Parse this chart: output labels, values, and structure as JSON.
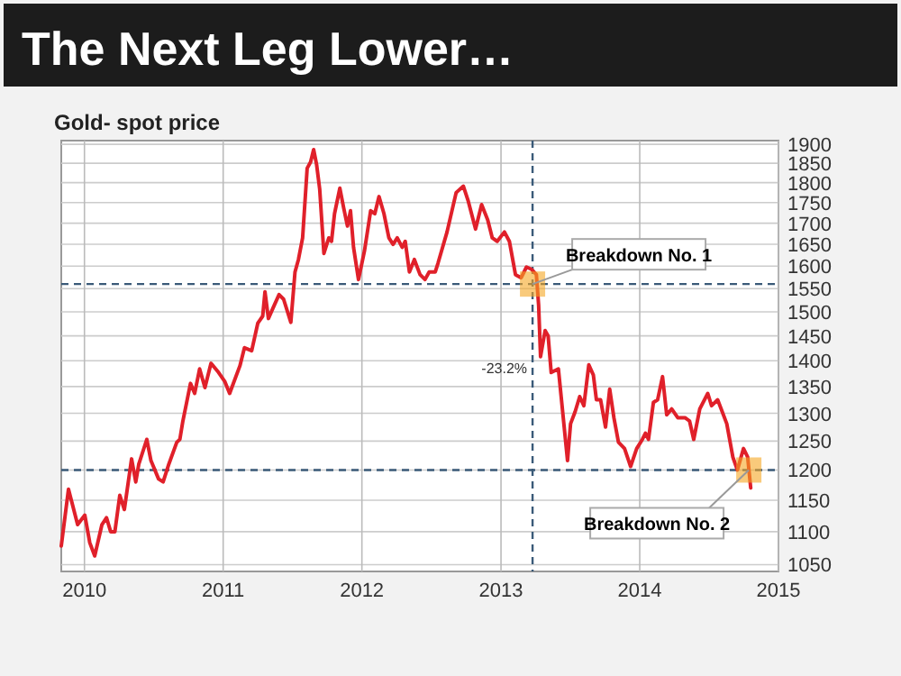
{
  "chart_data": {
    "type": "line",
    "title": "The Next Leg Lower…",
    "subtitle": "Gold- spot price",
    "x": [
      "2009-11-01",
      "2009-11-20",
      "2009-12-14",
      "2010-01-02",
      "2010-01-15",
      "2010-01-28",
      "2010-02-16",
      "2010-02-28",
      "2010-03-11",
      "2010-03-22",
      "2010-04-04",
      "2010-04-16",
      "2010-05-05",
      "2010-05-16",
      "2010-05-24",
      "2010-06-14",
      "2010-06-25",
      "2010-07-15",
      "2010-07-27",
      "2010-08-11",
      "2010-09-01",
      "2010-09-09",
      "2010-09-17",
      "2010-10-07",
      "2010-10-18",
      "2010-10-31",
      "2010-11-14",
      "2010-11-30",
      "2010-12-20",
      "2011-01-05",
      "2011-01-18",
      "2011-02-14",
      "2011-02-26",
      "2011-03-17",
      "2011-04-02",
      "2011-04-15",
      "2011-04-21",
      "2011-04-30",
      "2011-05-12",
      "2011-05-28",
      "2011-06-09",
      "2011-06-28",
      "2011-07-09",
      "2011-07-18",
      "2011-07-29",
      "2011-08-10",
      "2011-08-19",
      "2011-08-27",
      "2011-09-04",
      "2011-09-12",
      "2011-09-23",
      "2011-10-06",
      "2011-10-13",
      "2011-10-21",
      "2011-11-04",
      "2011-11-14",
      "2011-11-24",
      "2011-12-02",
      "2011-12-10",
      "2011-12-23",
      "2012-01-08",
      "2012-01-24",
      "2012-02-04",
      "2012-02-15",
      "2012-02-28",
      "2012-03-12",
      "2012-03-23",
      "2012-04-03",
      "2012-04-16",
      "2012-04-24",
      "2012-05-05",
      "2012-05-18",
      "2012-06-02",
      "2012-06-15",
      "2012-06-26",
      "2012-07-12",
      "2012-07-19",
      "2012-08-12",
      "2012-09-05",
      "2012-09-24",
      "2012-10-07",
      "2012-10-26",
      "2012-11-11",
      "2012-11-27",
      "2012-12-09",
      "2012-12-22",
      "2013-01-10",
      "2013-01-23",
      "2013-02-08",
      "2013-02-23",
      "2013-03-09",
      "2013-03-22",
      "2013-04-04",
      "2013-04-10",
      "2013-04-15",
      "2013-04-27",
      "2013-05-05",
      "2013-05-13",
      "2013-06-01",
      "2013-06-25",
      "2013-07-03",
      "2013-07-15",
      "2013-07-27",
      "2013-08-07",
      "2013-08-20",
      "2013-09-01",
      "2013-09-09",
      "2013-09-20",
      "2013-10-03",
      "2013-10-14",
      "2013-10-25",
      "2013-11-06",
      "2013-11-22",
      "2013-12-08",
      "2013-12-24",
      "2014-01-08",
      "2014-01-16",
      "2014-01-24",
      "2014-02-06",
      "2014-02-17",
      "2014-03-02",
      "2014-03-13",
      "2014-03-26",
      "2014-04-11",
      "2014-04-30",
      "2014-05-12",
      "2014-05-23",
      "2014-06-08",
      "2014-06-29",
      "2014-07-09",
      "2014-07-25",
      "2014-08-06",
      "2014-08-18",
      "2014-09-03",
      "2014-09-15",
      "2014-10-01",
      "2014-10-12",
      "2014-10-20"
    ],
    "series": [
      {
        "color": "#e0202a",
        "values": [
          1078,
          1168,
          1111,
          1126,
          1083,
          1063,
          1111,
          1122,
          1100,
          1100,
          1158,
          1135,
          1219,
          1180,
          1210,
          1253,
          1216,
          1185,
          1180,
          1210,
          1248,
          1253,
          1286,
          1356,
          1337,
          1384,
          1348,
          1395,
          1377,
          1360,
          1337,
          1390,
          1426,
          1420,
          1476,
          1491,
          1543,
          1486,
          1508,
          1537,
          1527,
          1478,
          1587,
          1615,
          1665,
          1837,
          1853,
          1886,
          1845,
          1783,
          1629,
          1665,
          1657,
          1723,
          1786,
          1737,
          1693,
          1730,
          1643,
          1570,
          1636,
          1730,
          1723,
          1765,
          1723,
          1665,
          1650,
          1665,
          1643,
          1657,
          1587,
          1615,
          1581,
          1570,
          1587,
          1587,
          1606,
          1679,
          1775,
          1791,
          1753,
          1686,
          1745,
          1708,
          1665,
          1657,
          1679,
          1657,
          1581,
          1574,
          1598,
          1593,
          1581,
          1514,
          1408,
          1461,
          1450,
          1377,
          1384,
          1216,
          1281,
          1303,
          1331,
          1314,
          1392,
          1372,
          1325,
          1325,
          1275,
          1345,
          1292,
          1248,
          1237,
          1206,
          1237,
          1253,
          1264,
          1253,
          1320,
          1325,
          1369,
          1297,
          1308,
          1292,
          1292,
          1286,
          1253,
          1308,
          1337,
          1314,
          1325,
          1303,
          1281,
          1222,
          1200,
          1237,
          1222,
          1170
        ]
      }
    ],
    "log": "y",
    "xlim": [
      "2009-11-01",
      "2015-01-01"
    ],
    "ylim": [
      1040,
      1910
    ],
    "xticks": [
      {
        "value": "2010-01-01",
        "label": "2010"
      },
      {
        "value": "2011-01-01",
        "label": "2011"
      },
      {
        "value": "2012-01-01",
        "label": "2012"
      },
      {
        "value": "2013-01-01",
        "label": "2013"
      },
      {
        "value": "2014-01-01",
        "label": "2014"
      },
      {
        "value": "2015-01-01",
        "label": "2015"
      }
    ],
    "yticks": [
      1050,
      1100,
      1150,
      1200,
      1250,
      1300,
      1350,
      1400,
      1450,
      1500,
      1550,
      1600,
      1650,
      1700,
      1750,
      1800,
      1850,
      1900
    ],
    "grid": true,
    "marker": "none",
    "line_style": "solid",
    "ref_lines": [
      {
        "axis": "y",
        "value": 1560,
        "color": "#3a5a78",
        "line_style": "dashed"
      },
      {
        "axis": "y",
        "value": 1200,
        "color": "#3a5a78",
        "line_style": "dashed"
      },
      {
        "axis": "x",
        "value": "2013-03-25",
        "color": "#3a5a78",
        "line_style": "dashed"
      }
    ],
    "annotations": [
      {
        "text": "Breakdown No. 1",
        "x": "2013-03-25",
        "y": 1560
      },
      {
        "text": "Breakdown No. 2",
        "x": "2014-10-15",
        "y": 1200
      },
      {
        "text": "-23.2%",
        "x": "2013-03-25",
        "y": 1375
      }
    ]
  }
}
